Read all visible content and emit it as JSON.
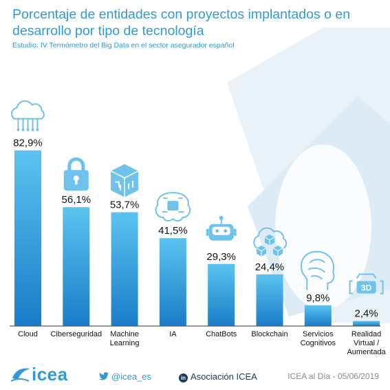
{
  "title": "Porcentaje de entidades con proyectos implantados o en desarrollo por tipo de tecnología",
  "subtitle": "Estudio: IV Termómetro del Big Data en el sector asegurador español",
  "chart_data": {
    "type": "bar",
    "categories": [
      [
        "Cloud"
      ],
      [
        "Ciberseguridad"
      ],
      [
        "Machine",
        "Learning"
      ],
      [
        "IA"
      ],
      [
        "ChatBots"
      ],
      [
        "Blockchain"
      ],
      [
        "Servicios",
        "Cognitivos"
      ],
      [
        "Realidad",
        "Virtual /",
        "Aumentada"
      ]
    ],
    "values": [
      82.9,
      56.1,
      53.7,
      41.5,
      29.3,
      24.4,
      9.8,
      2.4
    ],
    "value_labels": [
      "82,9%",
      "56,1%",
      "53,7%",
      "41,5%",
      "29,3%",
      "24,4%",
      "9,8%",
      "2,4%"
    ],
    "icons": [
      "cloud-icon",
      "lock-icon",
      "machine-learning-icon",
      "ai-brain-icon",
      "chatbot-icon",
      "blockchain-icon",
      "cognitive-head-icon",
      "vr-3d-icon"
    ],
    "ylim": [
      0,
      100
    ],
    "grid": false,
    "legend": "none",
    "bar_color_top": "#5cc3f0",
    "bar_color_bottom": "#1a7cc8"
  },
  "footer": {
    "brand": "icea",
    "twitter": "@icea_es",
    "linkedin": "Asociación ICEA",
    "linkedin_badge": "in",
    "date": "ICEA al Día - 05/06/2019"
  },
  "colors": {
    "accent": "#2e9bd8",
    "dark": "#1a3a5c",
    "icon": "#6fc2ec"
  }
}
